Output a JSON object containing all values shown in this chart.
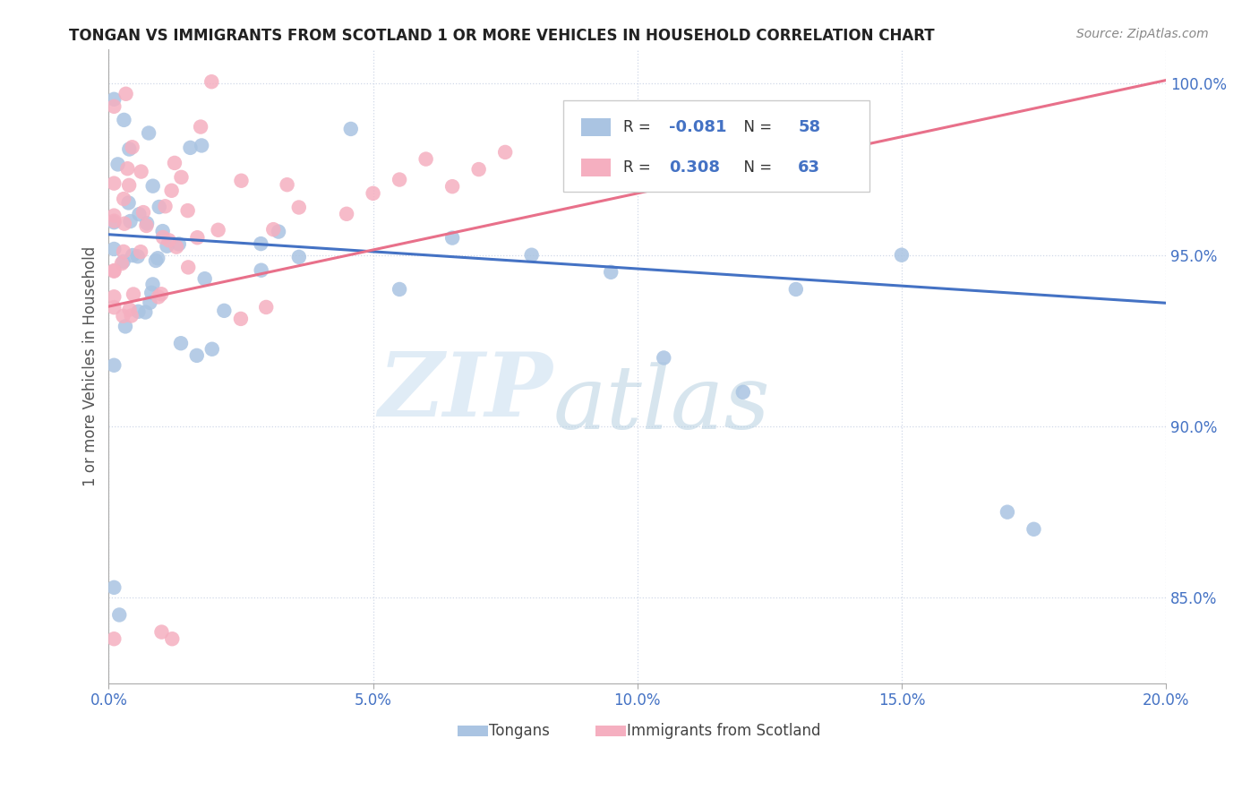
{
  "title": "TONGAN VS IMMIGRANTS FROM SCOTLAND 1 OR MORE VEHICLES IN HOUSEHOLD CORRELATION CHART",
  "source": "Source: ZipAtlas.com",
  "ylabel": "1 or more Vehicles in Household",
  "xlim": [
    0.0,
    0.2
  ],
  "ylim": [
    0.825,
    1.01
  ],
  "xticks": [
    0.0,
    0.05,
    0.1,
    0.15,
    0.2
  ],
  "xtick_labels": [
    "0.0%",
    "5.0%",
    "10.0%",
    "15.0%",
    "20.0%"
  ],
  "yticks": [
    0.85,
    0.9,
    0.95,
    1.0
  ],
  "ytick_labels": [
    "85.0%",
    "90.0%",
    "95.0%",
    "100.0%"
  ],
  "blue_R": -0.081,
  "blue_N": 58,
  "pink_R": 0.308,
  "pink_N": 63,
  "blue_color": "#aac4e2",
  "pink_color": "#f5afc0",
  "blue_line_color": "#4472c4",
  "pink_line_color": "#e8708a",
  "legend_labels": [
    "Tongans",
    "Immigrants from Scotland"
  ],
  "watermark_zip": "ZIP",
  "watermark_atlas": "atlas",
  "tick_color": "#4472c4",
  "grid_color": "#d0d8e8",
  "title_color": "#222222",
  "source_color": "#888888",
  "ylabel_color": "#555555"
}
